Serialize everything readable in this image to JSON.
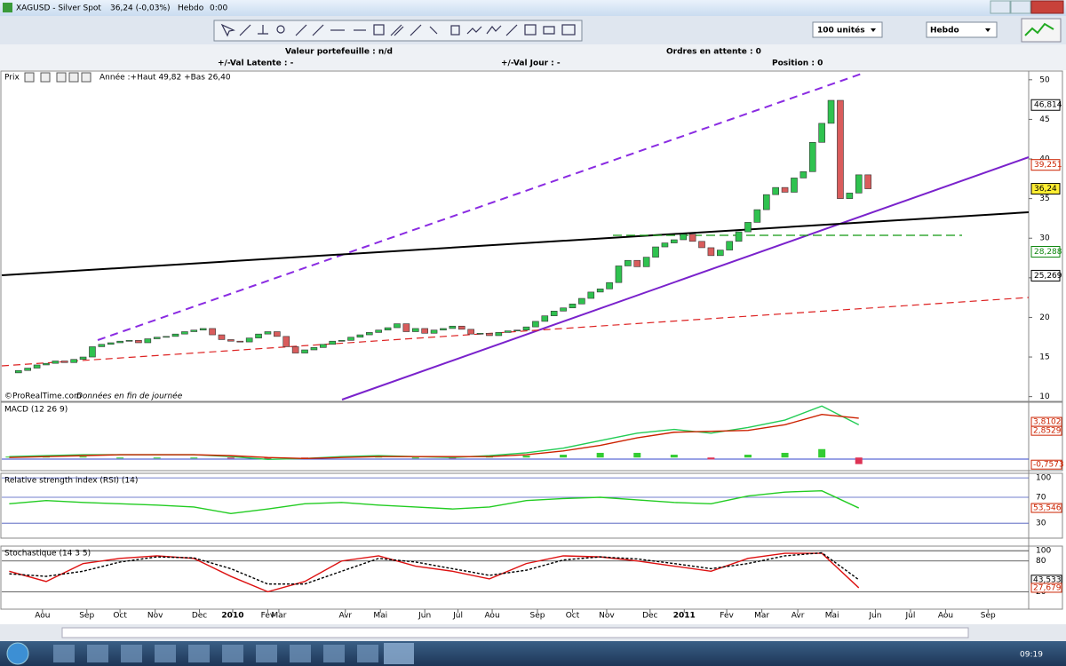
{
  "window": {
    "symbol": "XAGUSD - Silver Spot",
    "quote": "36,24 (-0,03%)",
    "period": "Hebdo",
    "time": "0:00"
  },
  "toolbar": {
    "quantity": "100 unités",
    "period": "Hebdo"
  },
  "info": {
    "portfolio": "Valeur portefeuille : n/d",
    "pending": "Ordres en attente : 0",
    "latent": "+/-Val Latente : -",
    "day": "+/-Val Jour : -",
    "position": "Position : 0"
  },
  "x_axis": {
    "xlim": [
      -1,
      110.4
    ],
    "ticks": [
      {
        "value": 3.6,
        "label": "Aou"
      },
      {
        "value": 8.4,
        "label": "Sep"
      },
      {
        "value": 12.0,
        "label": "Oct"
      },
      {
        "value": 15.8,
        "label": "Nov"
      },
      {
        "value": 20.6,
        "label": "Dec"
      },
      {
        "value": 24.2,
        "label": "2010"
      },
      {
        "value": 28.0,
        "label": "Fev"
      },
      {
        "value": 29.2,
        "label": "Mar"
      },
      {
        "value": 36.4,
        "label": "Avr"
      },
      {
        "value": 40.2,
        "label": "Mai"
      },
      {
        "value": 45.0,
        "label": "Jun"
      },
      {
        "value": 48.6,
        "label": "Jul"
      },
      {
        "value": 52.3,
        "label": "Aou"
      },
      {
        "value": 57.2,
        "label": "Sep"
      },
      {
        "value": 61.0,
        "label": "Oct"
      },
      {
        "value": 64.7,
        "label": "Nov"
      },
      {
        "value": 69.4,
        "label": "Dec"
      },
      {
        "value": 73.1,
        "label": "2011"
      },
      {
        "value": 77.7,
        "label": "Fev"
      },
      {
        "value": 81.5,
        "label": "Mar"
      },
      {
        "value": 85.4,
        "label": "Avr"
      },
      {
        "value": 89.1,
        "label": "Mai"
      },
      {
        "value": 93.8,
        "label": "Jun"
      },
      {
        "value": 97.6,
        "label": "Jul"
      },
      {
        "value": 101.4,
        "label": "Aou"
      },
      {
        "value": 106.0,
        "label": "Sep"
      }
    ]
  },
  "price": {
    "type": "candlestick",
    "panel_label": "Prix",
    "annotation": "Année :+Haut 49,82 +Bas 26,40",
    "source": "©ProRealTime.com",
    "note": "Données en fin de journée",
    "ylim": [
      9.4,
      51.1
    ],
    "yticks": [
      10,
      15,
      20,
      25,
      30,
      35,
      40,
      45,
      50
    ],
    "up_color": "#2fc24f",
    "down_color": "#d95c5c",
    "close": [
      13.0,
      13.3,
      13.6,
      14.0,
      14.2,
      14.5,
      14.3,
      14.7,
      15.0,
      16.3,
      16.6,
      16.8,
      17.0,
      17.1,
      16.8,
      17.3,
      17.5,
      17.6,
      17.9,
      18.2,
      18.4,
      18.6,
      17.8,
      17.2,
      17.0,
      16.9,
      17.4,
      17.9,
      18.2,
      17.6,
      16.3,
      15.5,
      15.9,
      16.2,
      16.6,
      17.0,
      17.1,
      17.5,
      17.8,
      18.1,
      18.4,
      18.7,
      19.2,
      18.2,
      18.6,
      18.0,
      18.4,
      18.6,
      18.9,
      18.5,
      17.9,
      18.0,
      17.7,
      18.1,
      18.3,
      18.4,
      18.8,
      19.5,
      20.2,
      20.8,
      21.2,
      21.7,
      22.4,
      23.2,
      23.6,
      24.4,
      26.5,
      27.2,
      26.4,
      27.6,
      28.9,
      29.4,
      29.8,
      30.5,
      29.6,
      28.8,
      27.8,
      28.5,
      29.6,
      30.8,
      32.0,
      33.6,
      35.5,
      36.4,
      35.8,
      37.6,
      38.4,
      42.1,
      44.5,
      47.4,
      35.0,
      35.7,
      38.0,
      36.24
    ],
    "price_labels": [
      {
        "value": 46.814,
        "label": "46,814",
        "color": "#000000"
      },
      {
        "value": 39.251,
        "label": "39,251",
        "color": "#cc2200"
      },
      {
        "value": 36.24,
        "label": "36,24",
        "color": "#000000"
      },
      {
        "value": 28.288,
        "label": "28,288",
        "color": "#118811"
      },
      {
        "value": 25.269,
        "label": "25,269",
        "color": "#000000"
      }
    ]
  },
  "macd": {
    "label": "MACD (12 26 9)",
    "ylim": [
      -1.4,
      5.9
    ],
    "x": [
      0,
      4,
      8,
      12,
      16,
      20,
      24,
      28,
      32,
      36,
      40,
      44,
      48,
      52,
      56,
      60,
      64,
      68,
      72,
      76,
      80,
      84,
      88,
      92
    ],
    "macd": [
      0.1,
      0.2,
      0.3,
      0.3,
      0.3,
      0.3,
      0.1,
      -0.2,
      -0.1,
      0.1,
      0.2,
      0.1,
      0.0,
      0.2,
      0.5,
      1.0,
      1.8,
      2.6,
      3.0,
      2.6,
      3.2,
      4.0,
      5.5,
      3.5
    ],
    "signal": [
      0.0,
      0.1,
      0.2,
      0.3,
      0.3,
      0.3,
      0.2,
      0.0,
      -0.1,
      0.0,
      0.1,
      0.1,
      0.1,
      0.1,
      0.3,
      0.7,
      1.3,
      2.1,
      2.7,
      2.8,
      2.9,
      3.5,
      4.6,
      4.2
    ],
    "histogram": [
      0.1,
      0.1,
      0.1,
      0.0,
      0.0,
      0.0,
      -0.1,
      -0.2,
      -0.1,
      0.1,
      0.1,
      0.0,
      -0.1,
      0.1,
      0.2,
      0.3,
      0.5,
      0.5,
      0.3,
      -0.2,
      0.3,
      0.5,
      0.9,
      -0.7
    ],
    "macd_color": "#22cc55",
    "signal_color": "#cc2200",
    "current": [
      {
        "value": 3.8102,
        "label": "3,8102",
        "color": "#cc2200"
      },
      {
        "value": 2.8529,
        "label": "2,8529",
        "color": "#cc2200"
      },
      {
        "value": -0.7573,
        "label": "-0,7573",
        "color": "#cc2200"
      }
    ]
  },
  "rsi": {
    "label": "Relative strength index (RSI) (14)",
    "ylim": [
      7,
      107
    ],
    "yticks": [
      100,
      70,
      30
    ],
    "x": [
      0,
      4,
      8,
      12,
      16,
      20,
      24,
      28,
      32,
      36,
      40,
      44,
      48,
      52,
      56,
      60,
      64,
      68,
      72,
      76,
      80,
      84,
      88,
      92
    ],
    "values": [
      60,
      65,
      62,
      60,
      58,
      55,
      45,
      52,
      60,
      62,
      58,
      55,
      52,
      55,
      65,
      68,
      70,
      66,
      62,
      60,
      72,
      78,
      80,
      53.5
    ],
    "color": "#22cc22",
    "current": [
      {
        "value": 53.546,
        "label": "53,546",
        "color": "#cc2200"
      }
    ]
  },
  "stoch": {
    "label": "Stochastique (14 3 5)",
    "ylim": [
      -14,
      109
    ],
    "yticks": [
      100,
      80,
      20
    ],
    "x": [
      0,
      4,
      8,
      12,
      16,
      20,
      24,
      28,
      32,
      36,
      40,
      44,
      48,
      52,
      56,
      60,
      64,
      68,
      72,
      76,
      80,
      84,
      88,
      92
    ],
    "k": [
      60,
      40,
      75,
      85,
      90,
      85,
      50,
      20,
      40,
      80,
      90,
      70,
      60,
      45,
      75,
      90,
      88,
      80,
      70,
      60,
      85,
      95,
      95,
      27.7
    ],
    "d": [
      55,
      50,
      60,
      78,
      88,
      86,
      65,
      35,
      35,
      60,
      85,
      78,
      65,
      52,
      62,
      82,
      88,
      84,
      75,
      65,
      75,
      90,
      96,
      43.5
    ],
    "k_color": "#dd1111",
    "d_color": "#000000",
    "current": [
      {
        "value": 43.533,
        "label": "43,533",
        "color": "#000000"
      },
      {
        "value": 27.679,
        "label": "27,679",
        "color": "#cc2200"
      }
    ]
  },
  "taskbar": {
    "time": "09:19"
  }
}
